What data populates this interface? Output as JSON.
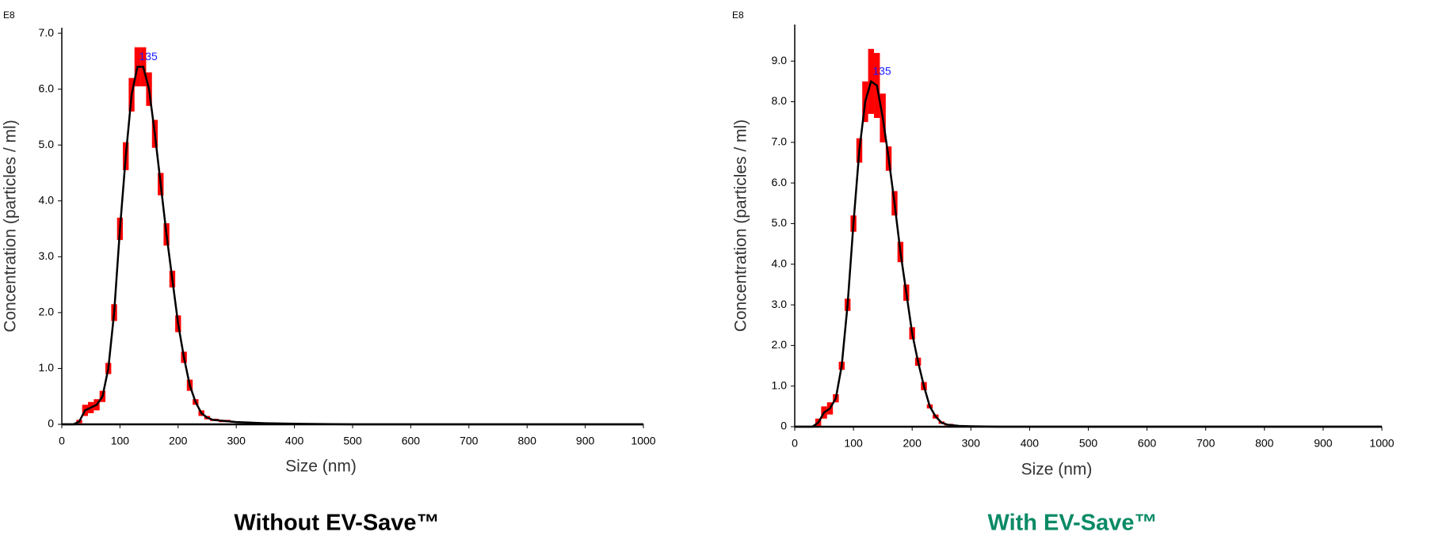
{
  "chart_data": [
    {
      "type": "line",
      "exponent_label": "E8",
      "ylabel": "Concentration (particles / ml)",
      "xlabel": "Size (nm)",
      "caption": "Without EV-Save™",
      "caption_color": "#000000",
      "peak_label": "135",
      "line_color": "#000000",
      "error_color": "#ff0000",
      "label_color": "#1a1aff",
      "x": [
        0,
        20,
        30,
        40,
        50,
        60,
        70,
        80,
        90,
        100,
        110,
        120,
        130,
        140,
        150,
        160,
        170,
        180,
        190,
        200,
        210,
        220,
        230,
        240,
        250,
        260,
        280,
        300,
        350,
        400,
        500,
        1000
      ],
      "values": [
        0,
        0,
        0.05,
        0.25,
        0.3,
        0.35,
        0.5,
        1.0,
        2.0,
        3.5,
        4.8,
        5.9,
        6.4,
        6.4,
        6.0,
        5.2,
        4.3,
        3.4,
        2.6,
        1.8,
        1.2,
        0.7,
        0.4,
        0.2,
        0.12,
        0.08,
        0.06,
        0.04,
        0.02,
        0.01,
        0,
        0
      ],
      "error": [
        0,
        0,
        0.03,
        0.1,
        0.1,
        0.1,
        0.1,
        0.1,
        0.15,
        0.2,
        0.25,
        0.3,
        0.35,
        0.35,
        0.3,
        0.25,
        0.2,
        0.2,
        0.15,
        0.15,
        0.1,
        0.1,
        0.05,
        0.05,
        0.03,
        0.02,
        0.02,
        0.01,
        0.01,
        0,
        0,
        0
      ],
      "xlim": [
        0,
        1000
      ],
      "xticks": [
        0,
        100,
        200,
        300,
        400,
        500,
        600,
        700,
        800,
        900,
        1000
      ],
      "ylim": [
        0,
        7.1
      ],
      "yticks": [
        0,
        {
          "value": 1,
          "label": "1.0"
        },
        {
          "value": 2,
          "label": "2.0"
        },
        {
          "value": 3,
          "label": "3.0"
        },
        {
          "value": 4,
          "label": "4.0"
        },
        {
          "value": 5,
          "label": "5.0"
        },
        {
          "value": 6,
          "label": "6.0"
        },
        {
          "value": 7,
          "label": "7.0"
        }
      ]
    },
    {
      "type": "line",
      "exponent_label": "E8",
      "ylabel": "Concentration (particles / ml)",
      "xlabel": "Size (nm)",
      "caption": "With EV-Save™",
      "caption_color": "#0a8a66",
      "peak_label": "135",
      "line_color": "#000000",
      "error_color": "#ff0000",
      "label_color": "#1a1aff",
      "x": [
        0,
        20,
        30,
        40,
        50,
        60,
        70,
        80,
        90,
        100,
        110,
        120,
        130,
        140,
        150,
        160,
        170,
        180,
        190,
        200,
        210,
        220,
        230,
        240,
        250,
        260,
        280,
        300,
        350,
        400,
        500,
        1000
      ],
      "values": [
        0,
        0,
        0,
        0.1,
        0.35,
        0.45,
        0.7,
        1.5,
        3.0,
        5.0,
        6.8,
        8.0,
        8.5,
        8.4,
        7.6,
        6.6,
        5.5,
        4.3,
        3.3,
        2.3,
        1.6,
        1.0,
        0.5,
        0.25,
        0.1,
        0.05,
        0.02,
        0.01,
        0,
        0,
        0,
        0
      ],
      "error": [
        0,
        0,
        0,
        0.1,
        0.15,
        0.15,
        0.1,
        0.1,
        0.15,
        0.2,
        0.3,
        0.5,
        0.8,
        0.8,
        0.6,
        0.3,
        0.3,
        0.25,
        0.2,
        0.15,
        0.1,
        0.1,
        0.05,
        0.05,
        0.03,
        0.02,
        0.01,
        0,
        0,
        0,
        0,
        0
      ],
      "xlim": [
        0,
        1000
      ],
      "xticks": [
        0,
        100,
        200,
        300,
        400,
        500,
        600,
        700,
        800,
        900,
        1000
      ],
      "ylim": [
        0,
        9.9
      ],
      "yticks": [
        0,
        {
          "value": 1,
          "label": "1.0"
        },
        {
          "value": 2,
          "label": "2.0"
        },
        {
          "value": 3,
          "label": "3.0"
        },
        {
          "value": 4,
          "label": "4.0"
        },
        {
          "value": 5,
          "label": "5.0"
        },
        {
          "value": 6,
          "label": "6.0"
        },
        {
          "value": 7,
          "label": "7.0"
        },
        {
          "value": 8,
          "label": "8.0"
        },
        {
          "value": 9,
          "label": "9.0"
        }
      ]
    }
  ]
}
